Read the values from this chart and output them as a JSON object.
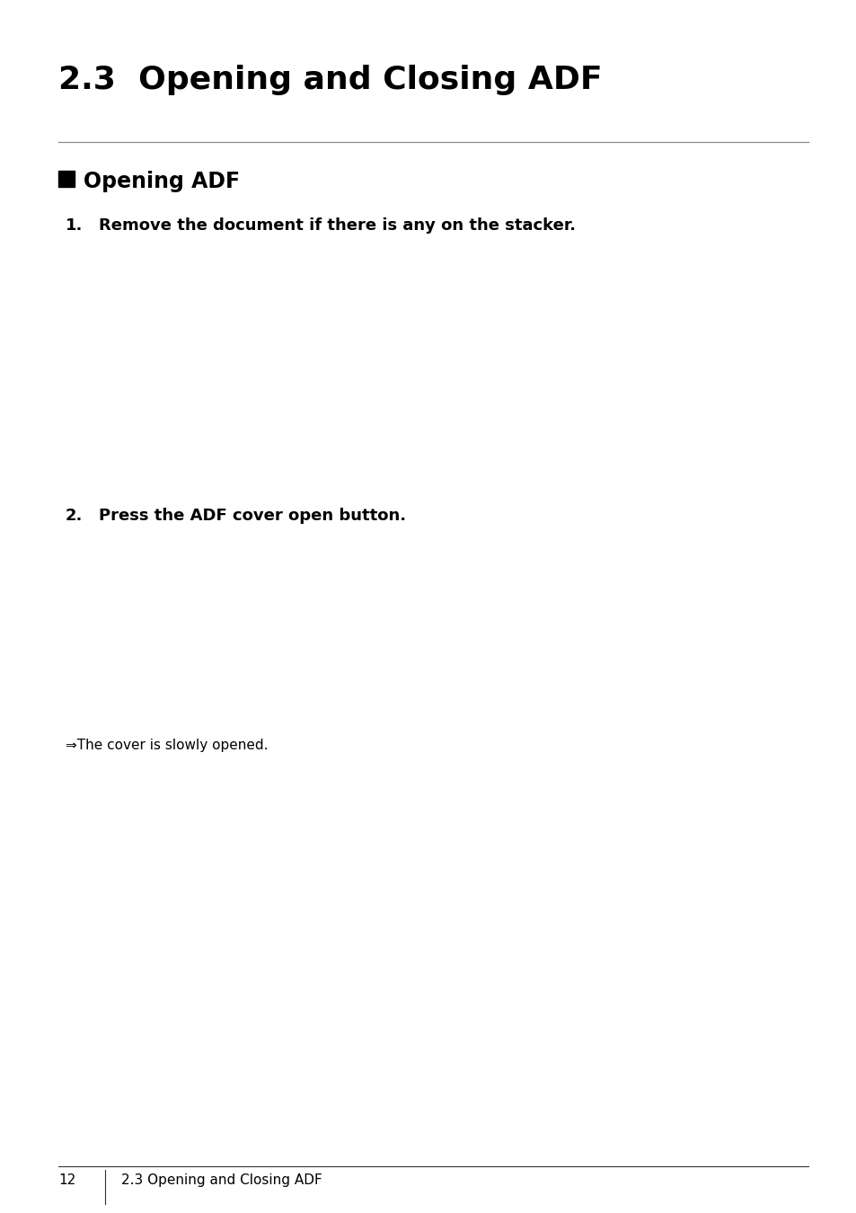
{
  "title": "2.3  Opening and Closing ADF",
  "section_header": "Opening ADF",
  "step1_label": "1.",
  "step1_text": "Remove the document if there is any on the stacker.",
  "step2_label": "2.",
  "step2_text": "Press the ADF cover open button.",
  "arrow_note": "⇒The cover is slowly opened.",
  "footer_page": "12",
  "footer_text": "2.3 Opening and Closing ADF",
  "bg_color": "#ffffff",
  "text_color": "#000000",
  "title_fontsize": 26,
  "section_fontsize": 17,
  "step_fontsize": 13,
  "note_fontsize": 11,
  "footer_fontsize": 11
}
